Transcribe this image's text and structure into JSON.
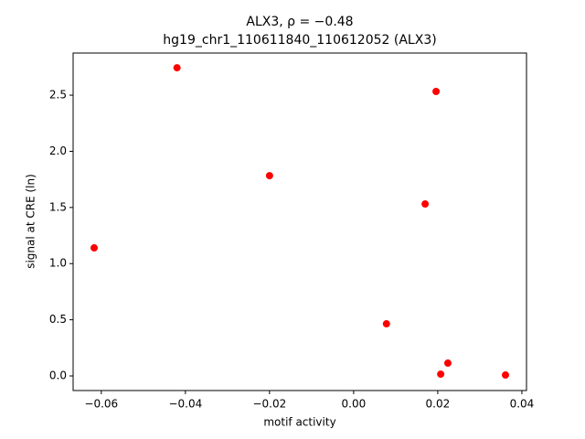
{
  "chart_data": {
    "type": "scatter",
    "title": "ALX3, ρ = −0.48",
    "subtitle": "hg19_chr1_110611840_110612052 (ALX3)",
    "x_label": "motif activity",
    "y_label": "signal at CRE (ln)",
    "color": "#ff0000",
    "x": [
      -0.0617,
      -0.042,
      -0.02,
      0.0078,
      0.017,
      0.0196,
      0.0207,
      0.0224,
      0.0361
    ],
    "values": [
      1.14,
      2.744,
      1.783,
      0.464,
      1.531,
      2.533,
      0.016,
      0.114,
      0.008
    ],
    "xlim": [
      -0.0667,
      0.0411
    ],
    "ylim": [
      -0.13,
      2.875
    ],
    "xticks": [
      {
        "value": -0.06,
        "label": "−0.06"
      },
      {
        "value": -0.04,
        "label": "−0.04"
      },
      {
        "value": -0.02,
        "label": "−0.02"
      },
      {
        "value": 0,
        "label": "0.00"
      },
      {
        "value": 0.02,
        "label": "0.02"
      },
      {
        "value": 0.04,
        "label": "0.04"
      }
    ],
    "yticks": [
      {
        "value": 0,
        "label": "0.0"
      },
      0.5,
      {
        "value": 1,
        "label": "1.0"
      },
      1.5,
      {
        "value": 2,
        "label": "2.0"
      },
      2.5
    ],
    "grid": false
  }
}
